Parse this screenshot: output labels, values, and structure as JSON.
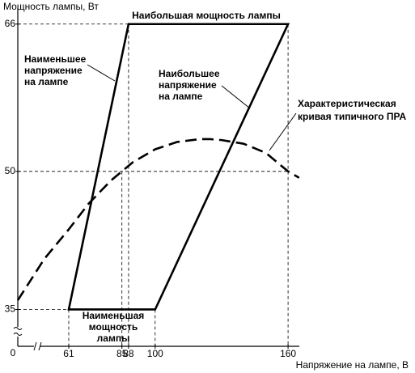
{
  "chart_data": {
    "type": "line",
    "y_label": "Мощность лампы, Вт",
    "x_label": "Напряжение на лампе, В",
    "origin_label": "0",
    "xlim": [
      38,
      168
    ],
    "ylim": [
      31,
      68
    ],
    "xticks": [
      61,
      85,
      88,
      100,
      160
    ],
    "yticks": [
      35,
      50,
      66
    ],
    "region": {
      "x": [
        61,
        100,
        160,
        88
      ],
      "y": [
        35,
        35,
        66,
        66
      ]
    },
    "curve": {
      "x": [
        38,
        50,
        61,
        70,
        80,
        85,
        90,
        100,
        110,
        120,
        125,
        130,
        140,
        150,
        160,
        165
      ],
      "y": [
        36,
        40.5,
        43.7,
        46.5,
        49,
        50,
        51,
        52.4,
        53.2,
        53.5,
        53.5,
        53.4,
        53,
        52,
        50,
        49.3
      ]
    },
    "annotations": {
      "max_power": [
        "Наибольшая мощность лампы"
      ],
      "min_voltage": [
        "Наименьшее",
        "напряжение",
        "на лампе"
      ],
      "max_voltage": [
        "Наибольшее",
        "напряжение",
        "на лампе"
      ],
      "ballast_curve": [
        "Характеристическая",
        "кривая типичного ПРА"
      ],
      "min_power": [
        "Наименьшая",
        "мощность",
        "лампы"
      ]
    }
  }
}
